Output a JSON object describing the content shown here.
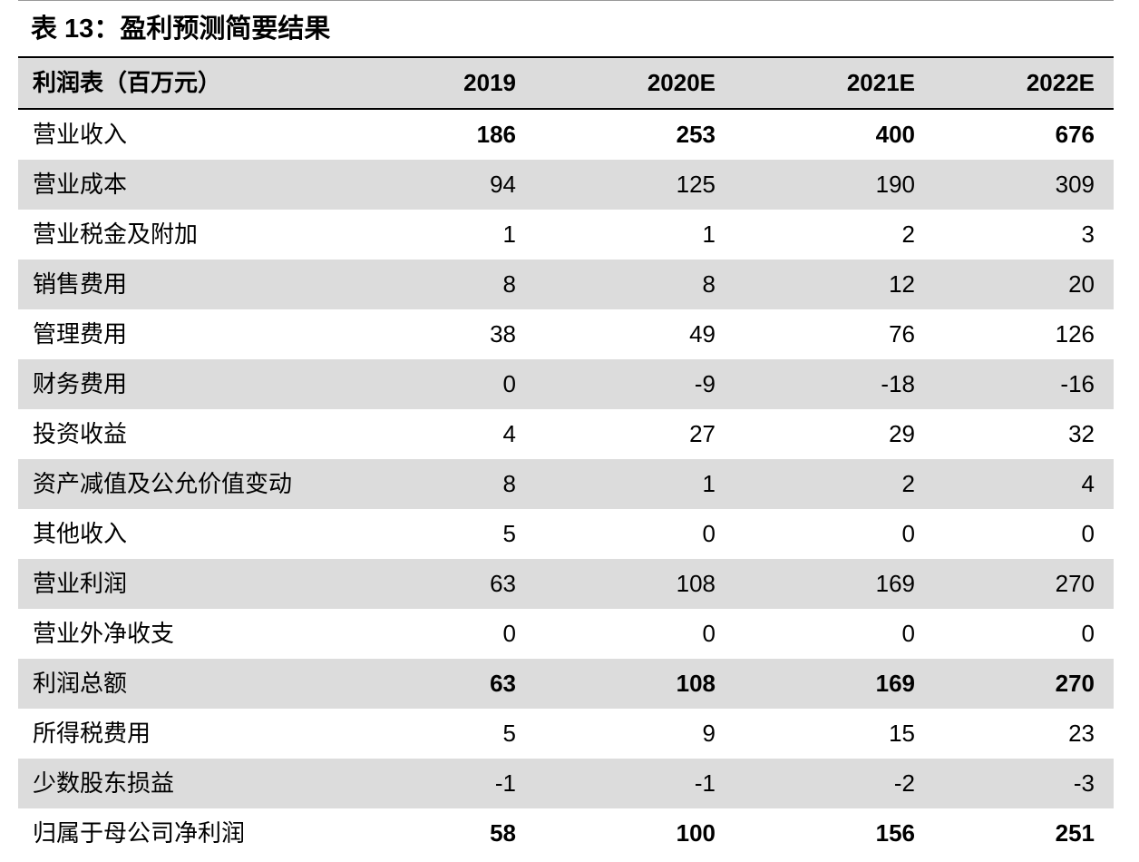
{
  "title": "表 13：盈利预测简要结果",
  "table": {
    "header": [
      "利润表（百万元）",
      "2019",
      "2020E",
      "2021E",
      "2022E"
    ],
    "rows": [
      {
        "label": "营业收入",
        "values": [
          186,
          253,
          400,
          676
        ],
        "bold": true
      },
      {
        "label": "营业成本",
        "values": [
          94,
          125,
          190,
          309
        ]
      },
      {
        "label": "营业税金及附加",
        "values": [
          1,
          1,
          2,
          3
        ]
      },
      {
        "label": "销售费用",
        "values": [
          8,
          8,
          12,
          20
        ]
      },
      {
        "label": "管理费用",
        "values": [
          38,
          49,
          76,
          126
        ]
      },
      {
        "label": "财务费用",
        "values": [
          0,
          -9,
          -18,
          -16
        ]
      },
      {
        "label": "投资收益",
        "values": [
          4,
          27,
          29,
          32
        ]
      },
      {
        "label": "资产减值及公允价值变动",
        "values": [
          8,
          1,
          2,
          4
        ]
      },
      {
        "label": "其他收入",
        "values": [
          5,
          0,
          0,
          0
        ]
      },
      {
        "label": "营业利润",
        "values": [
          63,
          108,
          169,
          270
        ]
      },
      {
        "label": "营业外净收支",
        "values": [
          0,
          0,
          0,
          0
        ]
      },
      {
        "label": "利润总额",
        "values": [
          63,
          108,
          169,
          270
        ],
        "bold": true
      },
      {
        "label": "所得税费用",
        "values": [
          5,
          9,
          15,
          23
        ]
      },
      {
        "label": "少数股东损益",
        "values": [
          -1,
          -1,
          -2,
          -3
        ]
      },
      {
        "label": "归属于母公司净利润",
        "values": [
          58,
          100,
          156,
          251
        ],
        "bold": true
      }
    ]
  }
}
